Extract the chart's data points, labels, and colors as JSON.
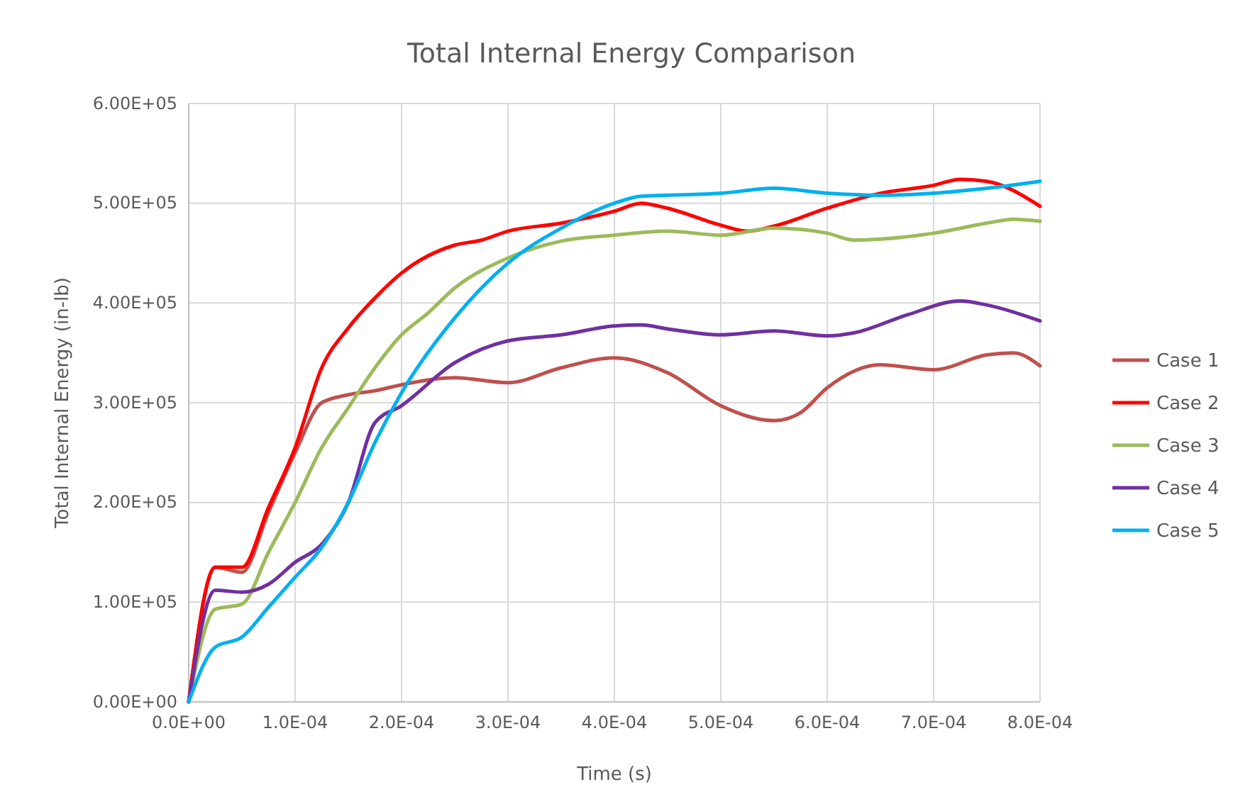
{
  "chart_data": {
    "type": "line",
    "title": "Total Internal Energy Comparison",
    "xlabel": "Time (s)",
    "ylabel": "Total Internal Energy (in-lb)",
    "xlim": [
      0,
      0.0008
    ],
    "ylim": [
      0,
      600000
    ],
    "xticks": [
      {
        "value": 0,
        "label": "0.0E+00"
      },
      {
        "value": 0.0001,
        "label": "1.0E-04"
      },
      {
        "value": 0.0002,
        "label": "2.0E-04"
      },
      {
        "value": 0.0003,
        "label": "3.0E-04"
      },
      {
        "value": 0.0004,
        "label": "4.0E-04"
      },
      {
        "value": 0.0005,
        "label": "5.0E-04"
      },
      {
        "value": 0.0006,
        "label": "6.0E-04"
      },
      {
        "value": 0.0007,
        "label": "7.0E-04"
      },
      {
        "value": 0.0008,
        "label": "8.0E-04"
      }
    ],
    "yticks": [
      {
        "value": 0,
        "label": "0.00E+00"
      },
      {
        "value": 100000,
        "label": "1.00E+05"
      },
      {
        "value": 200000,
        "label": "2.00E+05"
      },
      {
        "value": 300000,
        "label": "3.00E+05"
      },
      {
        "value": 400000,
        "label": "4.00E+05"
      },
      {
        "value": 500000,
        "label": "5.00E+05"
      },
      {
        "value": 600000,
        "label": "6.00E+05"
      }
    ],
    "grid": true,
    "legend": "right",
    "marker": "none",
    "line_style": "solid",
    "series": [
      {
        "name": "Case 1",
        "color": "#c0504d",
        "x": [
          0,
          2.5e-05,
          5e-05,
          7.5e-05,
          0.0001,
          0.000125,
          0.00015,
          0.000175,
          0.0002,
          0.00025,
          0.0003,
          0.00035,
          0.0004,
          0.00045,
          0.0005,
          0.00055,
          0.000575,
          0.0006,
          0.00065,
          0.0007,
          0.00075,
          0.000775,
          0.0008
        ],
        "values": [
          0,
          135000,
          130000,
          190000,
          250000,
          300000,
          308000,
          312000,
          318000,
          325000,
          320000,
          335000,
          345000,
          330000,
          297000,
          282000,
          290000,
          315000,
          338000,
          333000,
          348000,
          350000,
          337000
        ]
      },
      {
        "name": "Case 2",
        "color": "#ff0000",
        "x": [
          0,
          2.5e-05,
          5e-05,
          7.5e-05,
          0.0001,
          0.000125,
          0.00015,
          0.000175,
          0.0002,
          0.00025,
          0.000275,
          0.0003,
          0.00035,
          0.0004,
          0.000425,
          0.00045,
          0.0005,
          0.000525,
          0.00055,
          0.0006,
          0.00065,
          0.0007,
          0.000725,
          0.00075,
          0.0008
        ],
        "values": [
          0,
          135000,
          135000,
          195000,
          255000,
          335000,
          375000,
          405000,
          430000,
          458000,
          463000,
          472000,
          480000,
          492000,
          500000,
          495000,
          478000,
          472000,
          477000,
          495000,
          510000,
          518000,
          524000,
          522000,
          497000
        ]
      },
      {
        "name": "Case 3",
        "color": "#9bbb59",
        "x": [
          0,
          2.5e-05,
          5e-05,
          7.5e-05,
          0.0001,
          0.000125,
          0.00015,
          0.000175,
          0.0002,
          0.000225,
          0.00025,
          0.0003,
          0.00035,
          0.0004,
          0.00045,
          0.0005,
          0.00055,
          0.0006,
          0.000625,
          0.00065,
          0.0007,
          0.00075,
          0.000775,
          0.0008
        ],
        "values": [
          0,
          93000,
          98000,
          150000,
          200000,
          255000,
          295000,
          335000,
          368000,
          390000,
          415000,
          445000,
          462000,
          468000,
          472000,
          468000,
          475000,
          470000,
          463000,
          464000,
          470000,
          480000,
          484000,
          482000
        ]
      },
      {
        "name": "Case 4",
        "color": "#7030a0",
        "x": [
          0,
          2.5e-05,
          5e-05,
          7.5e-05,
          0.0001,
          0.000125,
          0.00015,
          0.000175,
          0.0002,
          0.00025,
          0.0003,
          0.00035,
          0.0004,
          0.000425,
          0.00045,
          0.0005,
          0.00055,
          0.0006,
          0.000625,
          0.000675,
          0.000725,
          0.00075,
          0.0008
        ],
        "values": [
          0,
          112000,
          110000,
          118000,
          140000,
          158000,
          200000,
          280000,
          297000,
          340000,
          362000,
          368000,
          377000,
          378000,
          374000,
          368000,
          372000,
          367000,
          370000,
          388000,
          402000,
          398000,
          382000
        ]
      },
      {
        "name": "Case 5",
        "color": "#00b0f0",
        "x": [
          0,
          2.5e-05,
          5e-05,
          7.5e-05,
          0.0001,
          0.000125,
          0.00015,
          0.000175,
          0.0002,
          0.00025,
          0.0003,
          0.00035,
          0.0004,
          0.000425,
          0.0005,
          0.00055,
          0.0006,
          0.00065,
          0.0007,
          0.00075,
          0.0008
        ],
        "values": [
          0,
          55000,
          65000,
          95000,
          125000,
          155000,
          200000,
          260000,
          310000,
          385000,
          440000,
          475000,
          500000,
          507000,
          510000,
          515000,
          510000,
          508000,
          510000,
          515000,
          522000
        ]
      }
    ]
  }
}
